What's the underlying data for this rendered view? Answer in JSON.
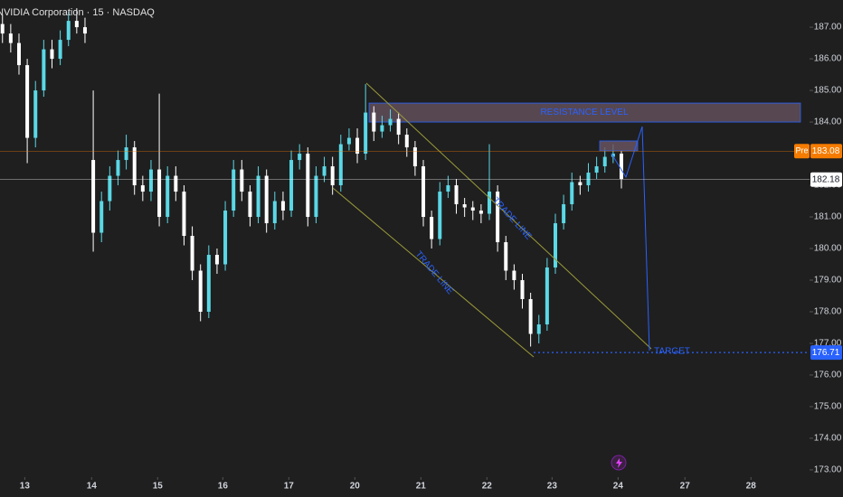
{
  "chart_data": {
    "type": "candlestick",
    "title": "NVIDIA Corporation · 15 · NASDAQ",
    "up_color": "#5ad8e6",
    "down_color": "#ffffff",
    "open": [
      187.1,
      186.8,
      186.5,
      185.8,
      183.5,
      185.0,
      186.3,
      186.0,
      186.6,
      187.2,
      187.0,
      182.8,
      180.5,
      181.5,
      182.3,
      182.8,
      183.2,
      182.0,
      181.8,
      182.5,
      181.0,
      182.3,
      181.8,
      180.4,
      179.3,
      178.0,
      179.8,
      179.5,
      181.2,
      182.5,
      181.8,
      181.0,
      182.3,
      180.8,
      181.5,
      181.2,
      182.8,
      183.0,
      181.0,
      182.3,
      182.6,
      182.0,
      183.3,
      183.5,
      183.0,
      184.3,
      183.7,
      183.9,
      184.1,
      183.6,
      183.2,
      182.6,
      181.0,
      180.3,
      181.8,
      182.0,
      181.4,
      181.3,
      181.2,
      181.1,
      181.8,
      180.2,
      179.3,
      179.0,
      178.4,
      177.3,
      177.6,
      179.4,
      180.8,
      181.4,
      182.1,
      182.0,
      182.4,
      182.6,
      182.9,
      183.0
    ],
    "high": [
      187.4,
      187.1,
      186.8,
      186.0,
      185.3,
      186.6,
      186.6,
      186.9,
      187.5,
      187.6,
      187.3,
      185.0,
      181.8,
      182.6,
      183.1,
      183.6,
      183.4,
      182.3,
      182.8,
      184.9,
      182.6,
      182.6,
      182.0,
      180.7,
      179.5,
      180.1,
      180.0,
      181.5,
      182.8,
      182.8,
      182.0,
      182.6,
      182.5,
      181.8,
      181.8,
      183.1,
      183.3,
      183.2,
      182.6,
      182.9,
      182.9,
      183.6,
      183.8,
      183.8,
      185.2,
      184.5,
      184.2,
      184.4,
      184.3,
      183.8,
      183.4,
      182.8,
      181.2,
      182.1,
      182.3,
      182.2,
      181.6,
      181.5,
      181.4,
      183.3,
      182.0,
      180.4,
      179.5,
      179.2,
      178.6,
      177.9,
      179.7,
      181.1,
      181.7,
      182.4,
      182.3,
      182.7,
      182.9,
      183.2,
      183.3,
      183.1
    ],
    "low": [
      186.5,
      186.2,
      185.5,
      182.7,
      183.2,
      184.8,
      185.7,
      185.8,
      186.4,
      186.8,
      186.5,
      179.9,
      180.2,
      181.2,
      182.0,
      182.5,
      181.7,
      181.5,
      181.5,
      180.7,
      180.8,
      181.5,
      180.1,
      179.0,
      177.7,
      177.8,
      179.2,
      179.3,
      181.0,
      181.5,
      180.7,
      180.8,
      180.5,
      180.6,
      180.9,
      181.0,
      182.5,
      180.7,
      180.8,
      182.1,
      181.7,
      181.8,
      183.1,
      182.7,
      182.8,
      183.4,
      183.5,
      183.7,
      183.3,
      182.9,
      182.3,
      180.7,
      180.0,
      180.1,
      181.6,
      181.1,
      181.0,
      180.9,
      180.8,
      180.9,
      179.9,
      179.0,
      178.7,
      178.1,
      176.9,
      177.0,
      177.4,
      179.2,
      180.6,
      181.2,
      181.7,
      181.8,
      182.2,
      182.4,
      182.7,
      181.9
    ],
    "close": [
      186.8,
      186.5,
      185.8,
      183.5,
      185.0,
      186.3,
      186.0,
      186.6,
      187.2,
      187.0,
      186.8,
      180.5,
      181.5,
      182.3,
      182.8,
      183.2,
      182.0,
      181.8,
      182.5,
      181.0,
      182.3,
      181.8,
      180.4,
      179.3,
      178.0,
      179.8,
      179.5,
      181.2,
      182.5,
      181.8,
      181.0,
      182.3,
      180.8,
      181.5,
      181.2,
      182.8,
      183.0,
      181.0,
      182.3,
      182.6,
      182.0,
      183.3,
      183.5,
      183.0,
      184.3,
      183.7,
      183.9,
      184.1,
      183.6,
      183.2,
      182.6,
      181.0,
      180.3,
      181.8,
      182.0,
      181.4,
      181.3,
      181.2,
      181.1,
      181.8,
      180.2,
      179.3,
      179.0,
      178.4,
      177.3,
      177.6,
      179.4,
      180.8,
      181.4,
      182.1,
      182.0,
      182.4,
      182.6,
      182.9,
      183.0,
      182.2
    ],
    "xlim": [
      -0.3,
      97.8
    ],
    "xticks": [
      {
        "value": 2.7,
        "label": "13"
      },
      {
        "value": 10.8,
        "label": "14"
      },
      {
        "value": 18.8,
        "label": "15"
      },
      {
        "value": 26.7,
        "label": "16"
      },
      {
        "value": 34.7,
        "label": "17"
      },
      {
        "value": 42.7,
        "label": "20"
      },
      {
        "value": 50.7,
        "label": "21"
      },
      {
        "value": 58.7,
        "label": "22"
      },
      {
        "value": 66.6,
        "label": "23"
      },
      {
        "value": 74.6,
        "label": "24"
      },
      {
        "value": 82.7,
        "label": "27"
      },
      {
        "value": 90.7,
        "label": "28"
      }
    ],
    "ylim": [
      172.77,
      187.86
    ],
    "yticks": [
      {
        "value": 173,
        "label": "173.00"
      },
      {
        "value": 174,
        "label": "174.00"
      },
      {
        "value": 175,
        "label": "175.00"
      },
      {
        "value": 176,
        "label": "176.00"
      },
      {
        "value": 177,
        "label": "177.00"
      },
      {
        "value": 178,
        "label": "178.00"
      },
      {
        "value": 179,
        "label": "179.00"
      },
      {
        "value": 180,
        "label": "180.00"
      },
      {
        "value": 181,
        "label": "181.00"
      },
      {
        "value": 182,
        "label": "182.00"
      },
      {
        "value": 184,
        "label": "184.00"
      },
      {
        "value": 185,
        "label": "185.00"
      },
      {
        "value": 186,
        "label": "186.00"
      },
      {
        "value": 187,
        "label": "187.00"
      }
    ],
    "price_lines": [
      {
        "name": "Pre",
        "value": 183.08,
        "color": "#f57c00",
        "line_style": "solid"
      },
      {
        "value": 182.18,
        "color": "#ffffff",
        "line_style": "solid"
      },
      {
        "value": 176.71,
        "color": "#2962ff",
        "line_style": "dotted"
      }
    ],
    "resistance": {
      "label": "RESISTANCE LEVEL",
      "low": 184.0,
      "high": 184.6
    },
    "trade_line_labels": [
      "TRADE LINE",
      "TRADE LINE"
    ],
    "target_label": "TARGET"
  }
}
